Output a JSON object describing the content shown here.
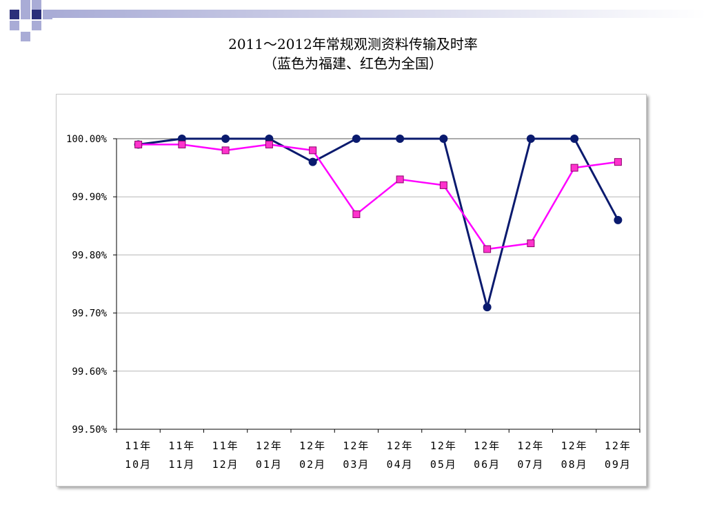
{
  "slide": {
    "title_line1": "2011～2012年常规观测资料传输及时率",
    "title_line2": "（蓝色为福建、红色为全国）"
  },
  "colors": {
    "deco_dark": "#2b2f7a",
    "deco_light": "#a9acd6",
    "series_fujian": "#0a1a6e",
    "series_national": "#ff00ff",
    "national_marker": "#ff33cc"
  },
  "chart_data": {
    "type": "line",
    "title": "",
    "xlabel": "",
    "ylabel": "",
    "categories": [
      [
        "11年",
        "10月"
      ],
      [
        "11年",
        "11月"
      ],
      [
        "11年",
        "12月"
      ],
      [
        "12年",
        "01月"
      ],
      [
        "12年",
        "02月"
      ],
      [
        "12年",
        "03月"
      ],
      [
        "12年",
        "04月"
      ],
      [
        "12年",
        "05月"
      ],
      [
        "12年",
        "06月"
      ],
      [
        "12年",
        "07月"
      ],
      [
        "12年",
        "08月"
      ],
      [
        "12年",
        "09月"
      ]
    ],
    "ylim": [
      99.5,
      100.0
    ],
    "yticks": [
      100.0,
      99.9,
      99.8,
      99.7,
      99.6,
      99.5
    ],
    "ytick_labels": [
      "100.00%",
      "99.90%",
      "99.80%",
      "99.70%",
      "99.60%",
      "99.50%"
    ],
    "grid": true,
    "series": [
      {
        "marker": "circle",
        "color": "#0a1a6e",
        "values": [
          99.99,
          100.0,
          100.0,
          100.0,
          99.96,
          100.0,
          100.0,
          100.0,
          99.71,
          100.0,
          100.0,
          99.86
        ]
      },
      {
        "marker": "square",
        "color": "#ff00ff",
        "values": [
          99.99,
          99.99,
          99.98,
          99.99,
          99.98,
          99.87,
          99.93,
          99.92,
          99.81,
          99.82,
          99.95,
          99.96
        ]
      }
    ]
  }
}
